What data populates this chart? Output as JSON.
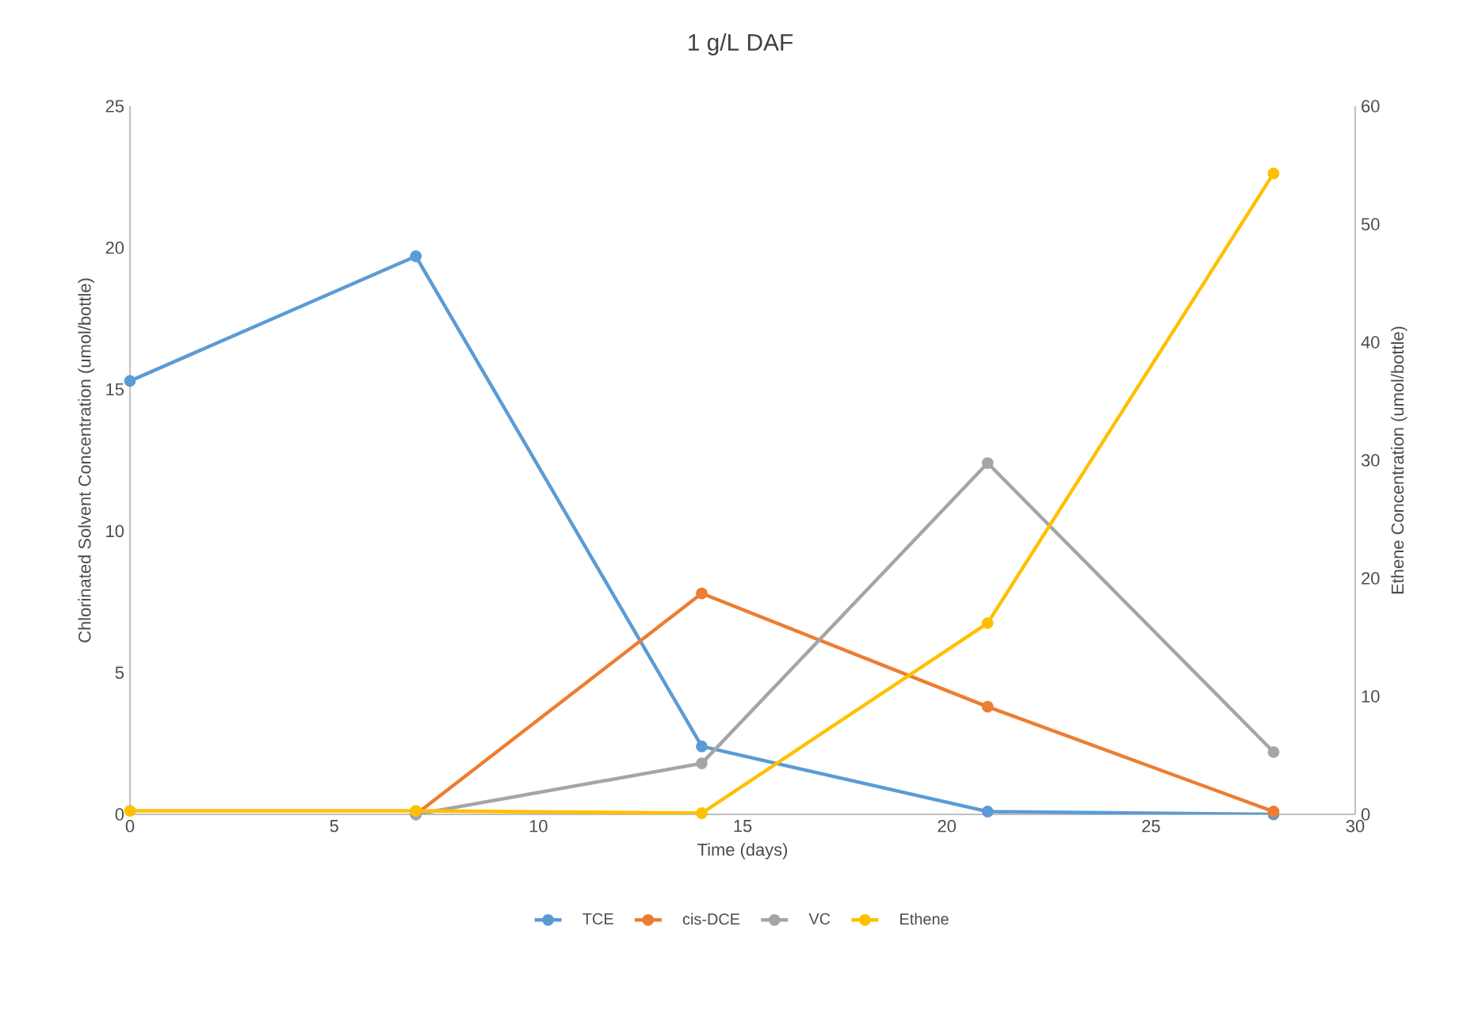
{
  "chart_data": {
    "type": "line",
    "title": "1 g/L DAF",
    "xlabel": "Time (days)",
    "ylabel": "Chlorinated Solvent Concentration (umol/bottle)",
    "y2label": "Ethene Concentration (umol/bottle)",
    "series": [
      {
        "name": "TCE",
        "color": "#5b9bd5",
        "x": [
          0,
          7,
          14,
          21,
          28
        ],
        "values": [
          15.3,
          19.7,
          2.4,
          0.1,
          0
        ]
      },
      {
        "name": "cis-DCE",
        "color": "#ed7d31",
        "x": [
          7,
          14,
          21,
          28
        ],
        "values": [
          0,
          7.8,
          3.8,
          0.1
        ]
      },
      {
        "name": "VC",
        "color": "#a5a5a5",
        "x": [
          7,
          14,
          21,
          28
        ],
        "values": [
          0,
          1.8,
          12.4,
          2.2
        ]
      },
      {
        "name": "Ethene",
        "color": "#ffc000",
        "axis": "y2",
        "x": [
          0,
          7,
          14,
          21,
          28
        ],
        "values": [
          0.3,
          0.3,
          0.1,
          16.2,
          54.3
        ]
      }
    ],
    "xlim": [
      0,
      30
    ],
    "xticks": [
      0,
      5,
      10,
      15,
      20,
      25,
      30
    ],
    "ylim": [
      0,
      25
    ],
    "yticks": [
      0,
      5,
      10,
      15,
      20,
      25
    ],
    "y2lim": [
      0,
      60
    ],
    "y2ticks": [
      0,
      10,
      20,
      30,
      40,
      50,
      60
    ],
    "legend": "bottom",
    "marker": "circle",
    "line_style": "solid"
  }
}
